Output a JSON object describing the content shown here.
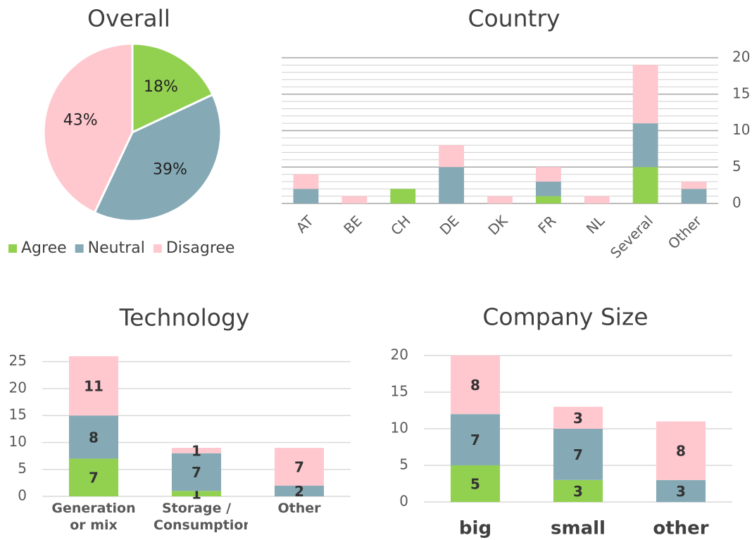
{
  "chart_data": [
    {
      "type": "pie",
      "title": "Overall",
      "categories": [
        "Agree",
        "Neutral",
        "Disagree"
      ],
      "values": [
        18,
        39,
        43
      ],
      "value_labels": [
        "18%",
        "39%",
        "43%"
      ],
      "colors": [
        "#92d050",
        "#85aab6",
        "#ffc7ce"
      ],
      "legend": "bottom"
    },
    {
      "type": "bar",
      "stacked": true,
      "title": "Country",
      "categories": [
        "AT",
        "BE",
        "CH",
        "DE",
        "DK",
        "FR",
        "NL",
        "Several",
        "Other"
      ],
      "series": [
        {
          "name": "Agree",
          "color": "#92d050",
          "values": [
            0,
            0,
            2,
            0,
            0,
            1,
            0,
            5,
            0
          ]
        },
        {
          "name": "Neutral",
          "color": "#85aab6",
          "values": [
            2,
            0,
            0,
            5,
            0,
            2,
            0,
            6,
            2
          ]
        },
        {
          "name": "Disagree",
          "color": "#ffc7ce",
          "values": [
            2,
            1,
            0,
            3,
            1,
            2,
            1,
            8,
            1
          ]
        }
      ],
      "ylim": [
        0,
        20
      ],
      "yticks": [
        0,
        5,
        10,
        15,
        20
      ],
      "grid": true,
      "minor_grid": true,
      "y_axis": "right"
    },
    {
      "type": "bar",
      "stacked": true,
      "title": "Technology",
      "categories": [
        "Generation or mix",
        "Storage / Consumption",
        "Other"
      ],
      "series": [
        {
          "name": "Agree",
          "color": "#92d050",
          "values": [
            7,
            1,
            0
          ]
        },
        {
          "name": "Neutral",
          "color": "#85aab6",
          "values": [
            8,
            7,
            2
          ]
        },
        {
          "name": "Disagree",
          "color": "#ffc7ce",
          "values": [
            11,
            1,
            7
          ]
        }
      ],
      "ylim": [
        0,
        26
      ],
      "yticks": [
        0,
        5,
        10,
        15,
        20,
        25
      ],
      "grid": true,
      "data_labels": true
    },
    {
      "type": "bar",
      "stacked": true,
      "title": "Company Size",
      "categories": [
        "big",
        "small",
        "other"
      ],
      "series": [
        {
          "name": "Agree",
          "color": "#92d050",
          "values": [
            5,
            3,
            0
          ]
        },
        {
          "name": "Neutral",
          "color": "#85aab6",
          "values": [
            7,
            7,
            3
          ]
        },
        {
          "name": "Disagree",
          "color": "#ffc7ce",
          "values": [
            8,
            3,
            8
          ]
        }
      ],
      "ylim": [
        0,
        20
      ],
      "yticks": [
        0,
        5,
        10,
        15,
        20
      ],
      "grid": true,
      "data_labels": true
    }
  ]
}
